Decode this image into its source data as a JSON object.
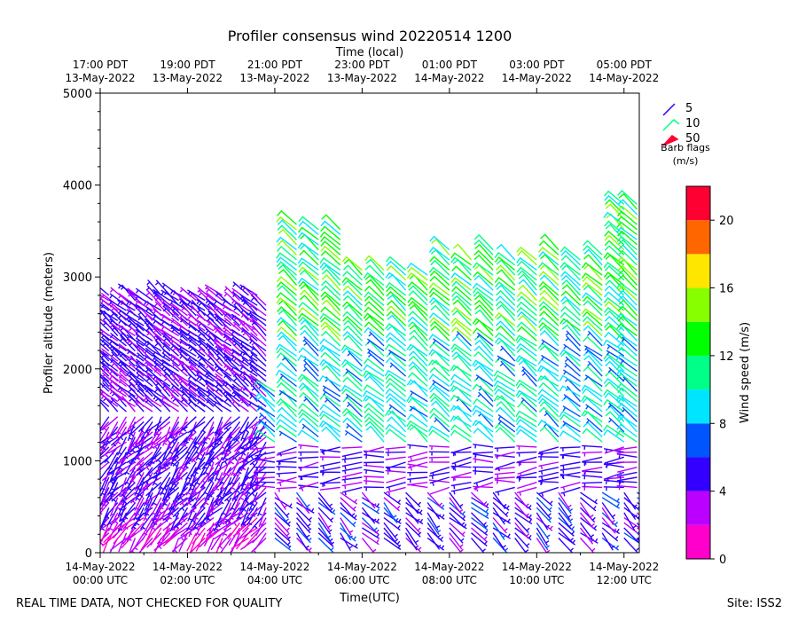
{
  "chart_data": {
    "type": "wind_barb_profile",
    "title": "Profiler consensus wind 20220514 1200",
    "xlabel": "Time(UTC)",
    "x2label": "Time (local)",
    "ylabel": "Profiler altitude (meters)",
    "ylim": [
      0,
      5000
    ],
    "xlim_hours": [
      0,
      12.35
    ],
    "y_ticks": [
      "0",
      "1000",
      "2000",
      "3000",
      "4000",
      "5000"
    ],
    "y_tick_values": [
      0,
      1000,
      2000,
      3000,
      4000,
      5000
    ],
    "x_ticks_utc": [
      {
        "hour": 0,
        "line1": "14-May-2022",
        "line2": "00:00 UTC"
      },
      {
        "hour": 2,
        "line1": "14-May-2022",
        "line2": "02:00 UTC"
      },
      {
        "hour": 4,
        "line1": "14-May-2022",
        "line2": "04:00 UTC"
      },
      {
        "hour": 6,
        "line1": "14-May-2022",
        "line2": "06:00 UTC"
      },
      {
        "hour": 8,
        "line1": "14-May-2022",
        "line2": "08:00 UTC"
      },
      {
        "hour": 10,
        "line1": "14-May-2022",
        "line2": "10:00 UTC"
      },
      {
        "hour": 12,
        "line1": "14-May-2022",
        "line2": "12:00 UTC"
      }
    ],
    "x_ticks_local": [
      {
        "hour": 0,
        "line1": "17:00 PDT",
        "line2": "13-May-2022"
      },
      {
        "hour": 2,
        "line1": "19:00 PDT",
        "line2": "13-May-2022"
      },
      {
        "hour": 4,
        "line1": "21:00 PDT",
        "line2": "13-May-2022"
      },
      {
        "hour": 6,
        "line1": "23:00 PDT",
        "line2": "13-May-2022"
      },
      {
        "hour": 8,
        "line1": "01:00 PDT",
        "line2": "14-May-2022"
      },
      {
        "hour": 10,
        "line1": "03:00 PDT",
        "line2": "14-May-2022"
      },
      {
        "hour": 12,
        "line1": "05:00 PDT",
        "line2": "14-May-2022"
      }
    ],
    "legend": {
      "position": "right",
      "entries": [
        "5",
        "10",
        "50"
      ],
      "title_line1": "Barb flags",
      "title_line2": "(m/s)"
    },
    "colorbar": {
      "label": "Wind speed (m/s)",
      "range": [
        0,
        22
      ],
      "ticks": [
        "0",
        "4",
        "8",
        "12",
        "16",
        "20"
      ],
      "tick_values": [
        0,
        4,
        8,
        12,
        16,
        20
      ],
      "bins": [
        0,
        2,
        4,
        6,
        8,
        10,
        12,
        14,
        16,
        18,
        20,
        22
      ],
      "colors": [
        "#ff00cc",
        "#bb00ff",
        "#3300ff",
        "#0055ff",
        "#00e5ff",
        "#00ff88",
        "#00ff00",
        "#88ff00",
        "#ffe600",
        "#ff6600",
        "#ff0033"
      ]
    },
    "columns_hours": [
      0,
      0.2,
      0.4,
      0.6,
      0.8,
      1.0,
      1.2,
      1.4,
      1.6,
      1.8,
      2.0,
      2.2,
      2.4,
      2.6,
      2.8,
      3.0,
      3.2,
      3.4,
      3.6,
      3.8,
      4.0,
      4.5,
      5.0,
      5.5,
      6.0,
      6.5,
      7.0,
      7.5,
      8.0,
      8.5,
      9.0,
      9.5,
      10.0,
      10.5,
      11.0,
      11.5,
      12.0,
      12.3
    ],
    "level_step_m": 55
  },
  "footer": {
    "left": "REAL TIME DATA, NOT CHECKED FOR QUALITY",
    "right": "Site: ISS2"
  }
}
